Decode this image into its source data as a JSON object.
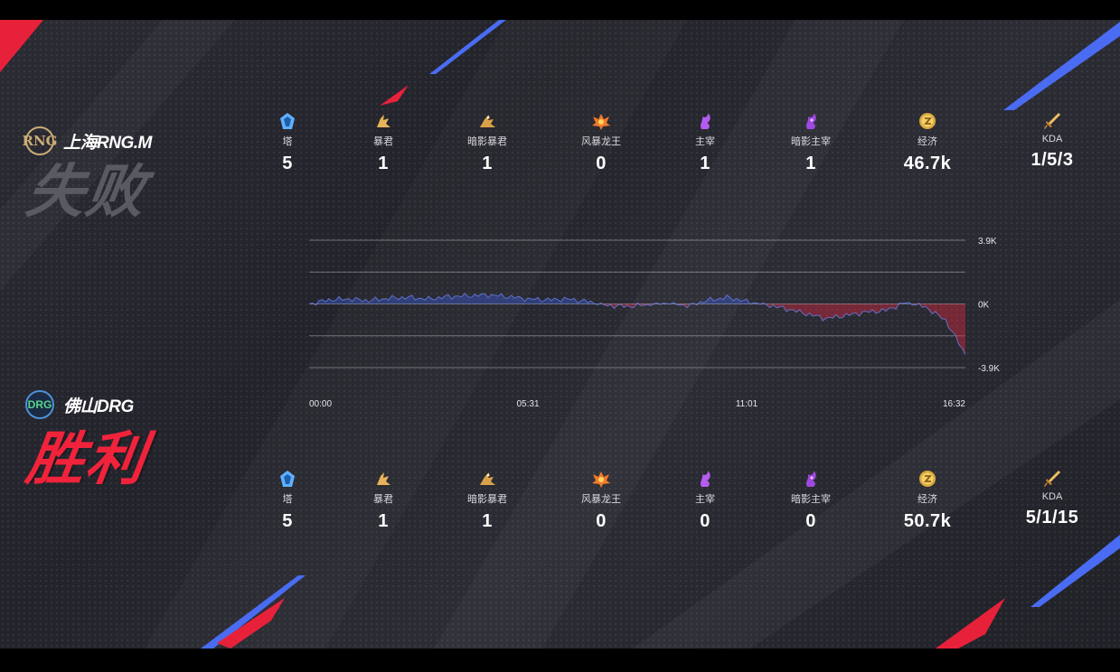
{
  "teams": {
    "top": {
      "logo": "RNG",
      "name": "上海RNG.M",
      "result": "失败"
    },
    "bottom": {
      "logo": "DRG",
      "name": "佛山DRG",
      "result": "胜利"
    }
  },
  "stat_labels": [
    "塔",
    "暴君",
    "暗影暴君",
    "风暴龙王",
    "主宰",
    "暗影主宰",
    "经济",
    "KDA"
  ],
  "stat_icons": [
    "tower-icon",
    "tyrant-icon",
    "shadow-tyrant-icon",
    "storm-dragon-icon",
    "overlord-icon",
    "shadow-overlord-icon",
    "gold-coin-icon",
    "sword-icon"
  ],
  "top_stats": [
    "5",
    "1",
    "1",
    "0",
    "1",
    "1",
    "46.7k",
    "1/5/3"
  ],
  "bottom_stats": [
    "5",
    "1",
    "1",
    "0",
    "0",
    "0",
    "50.7k",
    "5/1/15"
  ],
  "colors": {
    "loss_text": "#5a5a61",
    "win_text": "#f0233b",
    "blue_series": "#3a5bd1",
    "red_series": "#d3273e",
    "accent_blue": "#4a6cf2",
    "accent_red": "#e8213b"
  },
  "chart_data": {
    "type": "area",
    "title": "",
    "xlabel": "",
    "ylabel": "",
    "x_ticks": [
      "00:00",
      "05:31",
      "11:01",
      "16:32"
    ],
    "y_ticks": [
      "3.9K",
      "0K",
      "-3.9K"
    ],
    "ylim": [
      -3.9,
      3.9
    ],
    "y_unit": "K",
    "grid": true,
    "x": [
      "00:00",
      "00:30",
      "01:00",
      "01:30",
      "02:00",
      "02:30",
      "03:00",
      "03:30",
      "04:00",
      "04:30",
      "05:00",
      "05:31",
      "06:00",
      "06:30",
      "07:00",
      "07:30",
      "08:00",
      "08:30",
      "09:00",
      "09:30",
      "10:00",
      "10:30",
      "11:01",
      "11:30",
      "12:00",
      "12:30",
      "13:00",
      "13:30",
      "14:00",
      "14:30",
      "15:00",
      "15:30",
      "16:00",
      "16:32"
    ],
    "series": [
      {
        "values": [
          0,
          0.25,
          0.3,
          0.2,
          0.35,
          0.4,
          0.3,
          0.45,
          0.5,
          0.55,
          0.45,
          0.3,
          0.25,
          0.3,
          0.15,
          -0.1,
          -0.15,
          -0.05,
          0.05,
          -0.1,
          0.2,
          0.4,
          0.15,
          -0.05,
          -0.3,
          -0.6,
          -0.9,
          -0.7,
          -0.5,
          -0.4,
          0.1,
          -0.2,
          -1.0,
          -3.1
        ]
      }
    ]
  }
}
